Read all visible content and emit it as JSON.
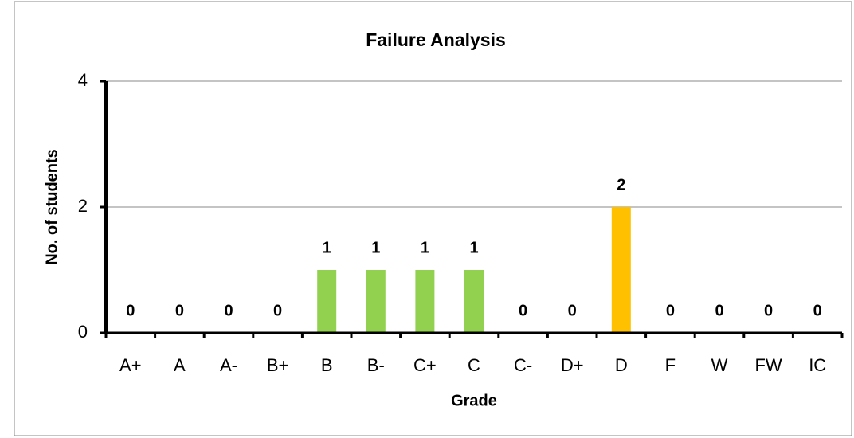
{
  "chart_data": {
    "type": "bar",
    "title": "Failure Analysis",
    "x_label": "Grade",
    "y_label": "No. of students",
    "categories": [
      "A+",
      "A",
      "A-",
      "B+",
      "B",
      "B-",
      "C+",
      "C",
      "C-",
      "D+",
      "D",
      "F",
      "W",
      "FW",
      "IC"
    ],
    "values": [
      0,
      0,
      0,
      0,
      1,
      1,
      1,
      1,
      0,
      0,
      2,
      0,
      0,
      0,
      0
    ],
    "colors": [
      "#92d050",
      "#92d050",
      "#92d050",
      "#92d050",
      "#92d050",
      "#92d050",
      "#92d050",
      "#92d050",
      "#92d050",
      "#92d050",
      "#ffc000",
      "#92d050",
      "#92d050",
      "#92d050",
      "#92d050"
    ],
    "ylim": [
      0,
      4
    ],
    "yticks": [
      0,
      2,
      4
    ],
    "grid": true
  }
}
